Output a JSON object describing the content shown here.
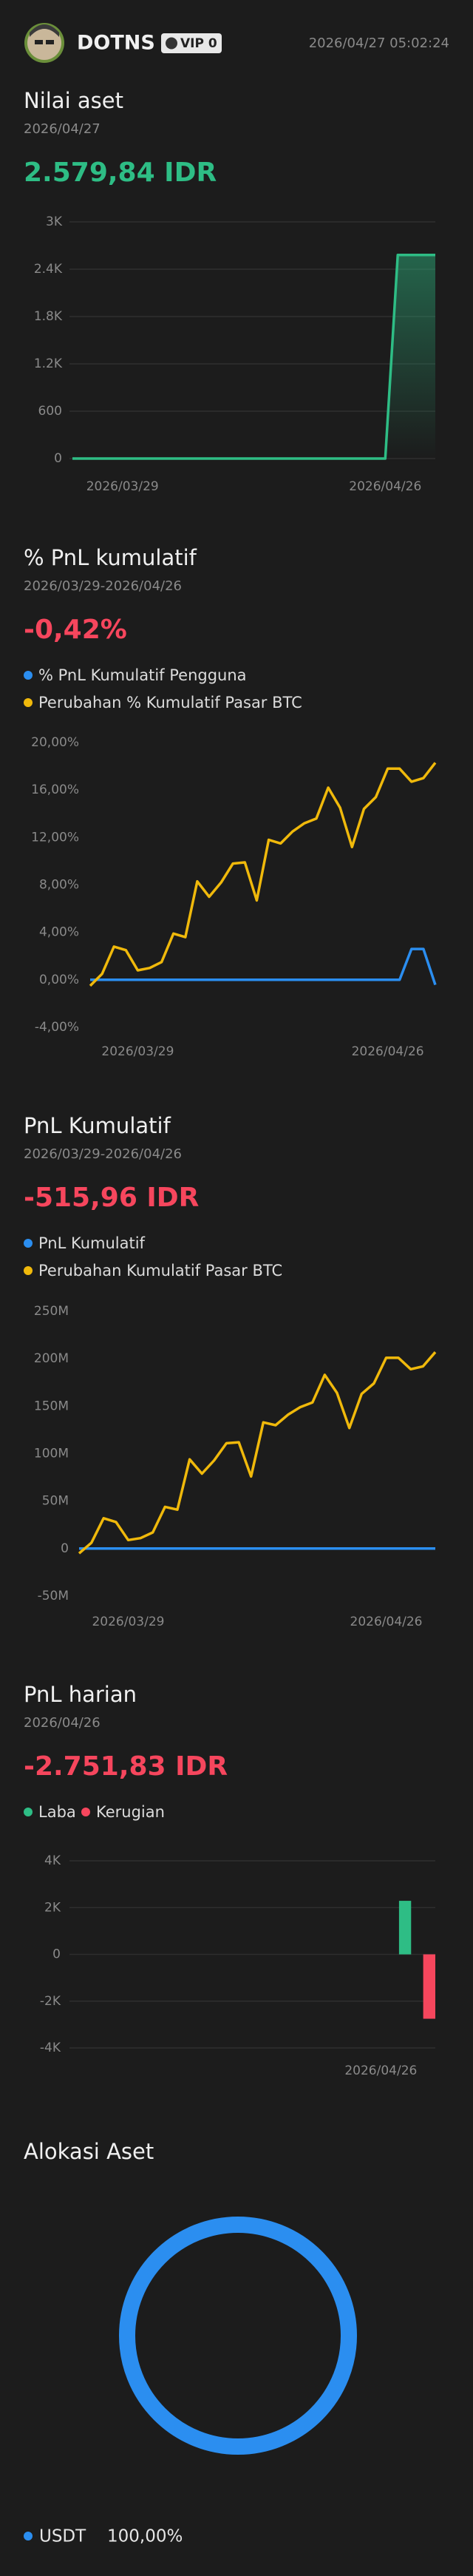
{
  "header": {
    "username": "DOTNS",
    "badge": "VIP 0",
    "timestamp": "2026/04/27 05:02:24"
  },
  "chart_data": [
    {
      "type": "line",
      "title": "Nilai aset",
      "subtitle": "2026/04/27",
      "headline": "2.579,84 IDR",
      "headline_color": "#2ebd85",
      "categories": [
        null,
        null,
        null,
        null,
        "2026/03/29",
        null,
        null,
        null,
        null,
        null,
        null,
        null,
        null,
        null,
        null,
        null,
        null,
        null,
        null,
        null,
        null,
        null,
        null,
        null,
        null,
        "2026/04/26",
        null,
        null,
        null,
        null
      ],
      "values": [
        0,
        0,
        0,
        0,
        0,
        0,
        0,
        0,
        0,
        0,
        0,
        0,
        0,
        0,
        0,
        0,
        0,
        0,
        0,
        0,
        0,
        0,
        0,
        0,
        0,
        0,
        2579.84,
        2579.84,
        2579.84,
        2579.84
      ],
      "color": "#2ebd85",
      "area": true,
      "grid": true,
      "ylim": [
        0,
        3000
      ],
      "yticks": [
        0,
        600,
        {
          "value": 1200,
          "label": "1.2K"
        },
        {
          "value": 1800,
          "label": "1.8K"
        },
        {
          "value": 2400,
          "label": "2.4K"
        },
        {
          "value": 3000,
          "label": "3K"
        }
      ]
    },
    {
      "type": "line",
      "title": "% PnL kumulatif",
      "subtitle": "2026/03/29-2026/04/26",
      "headline": "-0,42%",
      "headline_color": "#f6465d",
      "categories": [
        null,
        null,
        null,
        null,
        "2026/03/29",
        null,
        null,
        null,
        null,
        null,
        null,
        null,
        null,
        null,
        null,
        null,
        null,
        null,
        null,
        null,
        null,
        null,
        null,
        null,
        null,
        "2026/04/26",
        null,
        null,
        null,
        null
      ],
      "series": [
        {
          "name": "% PnL Kumulatif Pengguna",
          "color": "#2b8ef0",
          "values": [
            0,
            0,
            0,
            0,
            0,
            0,
            0,
            0,
            0,
            0,
            0,
            0,
            0,
            0,
            0,
            0,
            0,
            0,
            0,
            0,
            0,
            0,
            0,
            0,
            0,
            0,
            0,
            2.6,
            2.6,
            -0.42
          ]
        },
        {
          "name": "Perubahan % Kumulatif Pasar BTC",
          "color": "#f0b90b",
          "values": [
            -0.5,
            0.5,
            2.8,
            2.5,
            0.8,
            1.0,
            1.5,
            3.9,
            3.6,
            8.3,
            7.0,
            8.2,
            9.8,
            9.9,
            6.7,
            11.8,
            11.5,
            12.5,
            13.2,
            13.6,
            16.2,
            14.5,
            11.2,
            14.4,
            15.4,
            17.8,
            17.8,
            16.7,
            17.0,
            18.3
          ]
        }
      ],
      "grid": false,
      "ylim": [
        -4,
        20
      ],
      "yticks": [
        {
          "value": -4,
          "label": "-4,00%"
        },
        {
          "value": 0,
          "label": "0,00%"
        },
        {
          "value": 4,
          "label": "4,00%"
        },
        {
          "value": 8,
          "label": "8,00%"
        },
        {
          "value": 12,
          "label": "12,00%"
        },
        {
          "value": 16,
          "label": "16,00%"
        },
        {
          "value": 20,
          "label": "20,00%"
        }
      ]
    },
    {
      "type": "line",
      "title": "PnL Kumulatif",
      "subtitle": "2026/03/29-2026/04/26",
      "headline": "-515,96 IDR",
      "headline_color": "#f6465d",
      "categories": [
        null,
        null,
        null,
        null,
        "2026/03/29",
        null,
        null,
        null,
        null,
        null,
        null,
        null,
        null,
        null,
        null,
        null,
        null,
        null,
        null,
        null,
        null,
        null,
        null,
        null,
        null,
        "2026/04/26",
        null,
        null,
        null,
        null
      ],
      "series": [
        {
          "name": "PnL Kumulatif",
          "color": "#2b8ef0",
          "values": [
            0,
            0,
            0,
            0,
            0,
            0,
            0,
            0,
            0,
            0,
            0,
            0,
            0,
            0,
            0,
            0,
            0,
            0,
            0,
            0,
            0,
            0,
            0,
            0,
            0,
            0,
            0,
            2600,
            2600,
            -515.96
          ]
        },
        {
          "name": "Perubahan Kumulatif Pasar BTC",
          "color": "#f0b90b",
          "values": [
            -5000000,
            6000000,
            32000000,
            28000000,
            9000000,
            11000000,
            17000000,
            44000000,
            41000000,
            94000000,
            79000000,
            93000000,
            111000000,
            112000000,
            76000000,
            133000000,
            130000000,
            141000000,
            149000000,
            154000000,
            183000000,
            164000000,
            127000000,
            163000000,
            174000000,
            201000000,
            201000000,
            189000000,
            192000000,
            207000000
          ]
        }
      ],
      "grid": false,
      "ylim": [
        -50000000,
        250000000
      ],
      "yticks": [
        {
          "value": -50000000,
          "label": "-50M"
        },
        0,
        {
          "value": 50000000,
          "label": "50M"
        },
        {
          "value": 100000000,
          "label": "100M"
        },
        {
          "value": 150000000,
          "label": "150M"
        },
        {
          "value": 200000000,
          "label": "200M"
        },
        {
          "value": 250000000,
          "label": "250M"
        }
      ]
    },
    {
      "type": "bar",
      "title": "PnL harian",
      "subtitle": "2026/04/26",
      "headline": "-2.751,83 IDR",
      "headline_color": "#f6465d",
      "categories": [
        null,
        null,
        null,
        null,
        null,
        null,
        null,
        null,
        null,
        null,
        null,
        null,
        null,
        null,
        null,
        null,
        null,
        null,
        null,
        null,
        null,
        null,
        null,
        null,
        null,
        "2026/04/26",
        null,
        null,
        null,
        null
      ],
      "values": [
        0,
        0,
        0,
        0,
        0,
        0,
        0,
        0,
        0,
        0,
        0,
        0,
        0,
        0,
        0,
        0,
        0,
        0,
        0,
        0,
        0,
        0,
        0,
        0,
        0,
        0,
        0,
        2290,
        0,
        -2751.83
      ],
      "legend": [
        {
          "name": "Laba",
          "color": "#2ebd85"
        },
        {
          "name": "Kerugian",
          "color": "#f6465d"
        }
      ],
      "grid": true,
      "ylim": [
        -4000,
        4000
      ],
      "yticks": [
        {
          "value": -4000,
          "label": "-4K"
        },
        {
          "value": -2000,
          "label": "-2K"
        },
        0,
        {
          "value": 2000,
          "label": "2K"
        },
        {
          "value": 4000,
          "label": "4K"
        }
      ]
    },
    {
      "type": "pie",
      "title": "Alokasi Aset",
      "categories": [
        "USDT"
      ],
      "values": [
        100
      ],
      "value_labels": [
        "100,00%"
      ],
      "colors": [
        "#2b8ef0"
      ]
    }
  ]
}
